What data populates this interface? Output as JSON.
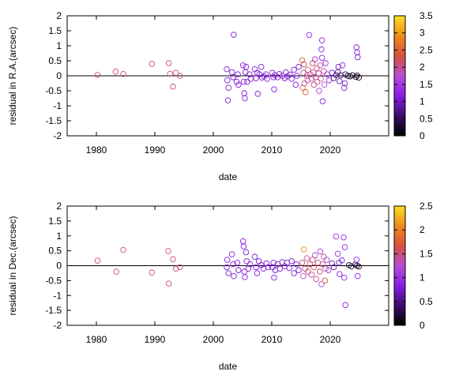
{
  "chart_data": [
    {
      "type": "scatter",
      "xlabel": "date",
      "ylabel": "residual in R.A.(arcsec)",
      "xlim": [
        1975,
        2030
      ],
      "ylim": [
        -2,
        2
      ],
      "xticks": [
        "1980",
        "1990",
        "2000",
        "2010",
        "2020"
      ],
      "yticks": [
        "2",
        "1.5",
        "1",
        "0.5",
        "0",
        "-0.5",
        "-1",
        "-1.5",
        "-2"
      ],
      "zero_line": true,
      "grid": false,
      "colorbar": {
        "range": [
          0,
          3.5
        ],
        "ticks": [
          "3.5",
          "3",
          "2.5",
          "2",
          "1.5",
          "1",
          "0.5",
          "0"
        ],
        "palette": [
          "#000000",
          "#3b0d6b",
          "#8a1ce8",
          "#b84dd6",
          "#d8503a",
          "#f08a1c",
          "#fce024"
        ]
      },
      "points": [
        [
          1980.2,
          0.03,
          2.1
        ],
        [
          1983.3,
          0.14,
          2.1
        ],
        [
          1984.6,
          0.06,
          2.1
        ],
        [
          1989.5,
          0.4,
          2.1
        ],
        [
          1992.4,
          0.42,
          2.1
        ],
        [
          1992.6,
          0.07,
          2.1
        ],
        [
          1993.1,
          -0.36,
          2.1
        ],
        [
          1993.6,
          0.1,
          2.1
        ],
        [
          1994.3,
          0.0,
          2.1
        ],
        [
          2002.3,
          0.22,
          1.1
        ],
        [
          2002.4,
          -0.15,
          1.1
        ],
        [
          2002.6,
          -0.4,
          1.1
        ],
        [
          2002.5,
          -0.82,
          1.1
        ],
        [
          2003.2,
          0.12,
          1.1
        ],
        [
          2003.4,
          -0.05,
          1.1
        ],
        [
          2003.5,
          1.37,
          1.1
        ],
        [
          2004.0,
          -0.2,
          1.1
        ],
        [
          2004.2,
          0.05,
          1.1
        ],
        [
          2004.3,
          -0.3,
          1.1
        ],
        [
          2005.1,
          0.35,
          1.1
        ],
        [
          2005.2,
          -0.2,
          1.1
        ],
        [
          2005.3,
          -0.58,
          1.1
        ],
        [
          2005.4,
          -0.75,
          1.1
        ],
        [
          2005.6,
          0.3,
          1.1
        ],
        [
          2005.5,
          0.12,
          1.1
        ],
        [
          2005.8,
          -0.2,
          1.1
        ],
        [
          2006.2,
          0.05,
          1.1
        ],
        [
          2006.4,
          -0.1,
          1.1
        ],
        [
          2007.1,
          0.22,
          1.1
        ],
        [
          2007.3,
          -0.08,
          1.1
        ],
        [
          2007.5,
          0.1,
          1.1
        ],
        [
          2007.6,
          -0.6,
          1.1
        ],
        [
          2007.9,
          0.05,
          1.1
        ],
        [
          2008.2,
          0.3,
          1.1
        ],
        [
          2008.3,
          -0.06,
          1.1
        ],
        [
          2008.7,
          -0.02,
          1.1
        ],
        [
          2009.0,
          0.05,
          1.1
        ],
        [
          2009.2,
          -0.1,
          1.1
        ],
        [
          2010.1,
          0.1,
          1.1
        ],
        [
          2010.3,
          -0.05,
          1.1
        ],
        [
          2010.4,
          -0.45,
          1.1
        ],
        [
          2010.5,
          0.02,
          1.1
        ],
        [
          2011.0,
          -0.05,
          1.1
        ],
        [
          2011.3,
          0.06,
          1.1
        ],
        [
          2011.8,
          0.0,
          1.1
        ],
        [
          2012.2,
          -0.08,
          1.1
        ],
        [
          2012.4,
          0.12,
          1.1
        ],
        [
          2012.7,
          -0.02,
          1.1
        ],
        [
          2013.1,
          0.04,
          1.1
        ],
        [
          2013.4,
          -0.1,
          1.1
        ],
        [
          2013.8,
          0.2,
          1.1
        ],
        [
          2014.1,
          -0.3,
          1.1
        ],
        [
          2014.3,
          0.0,
          1.1
        ],
        [
          2014.6,
          0.3,
          1.1
        ],
        [
          2015.2,
          0.52,
          2.5
        ],
        [
          2015.3,
          -0.4,
          2.5
        ],
        [
          2015.5,
          0.38,
          2.2
        ],
        [
          2015.6,
          -0.25,
          2.0
        ],
        [
          2015.4,
          0.1,
          2.0
        ],
        [
          2015.8,
          -0.55,
          2.4
        ],
        [
          2016.0,
          0.0,
          2.0
        ],
        [
          2016.2,
          0.2,
          2.1
        ],
        [
          2016.1,
          -0.15,
          1.9
        ],
        [
          2016.4,
          1.36,
          1.3
        ],
        [
          2016.6,
          0.05,
          2.0
        ],
        [
          2016.8,
          -0.1,
          2.0
        ],
        [
          2017.0,
          0.42,
          2.2
        ],
        [
          2017.2,
          -0.3,
          2.1
        ],
        [
          2017.1,
          0.12,
          2.0
        ],
        [
          2017.4,
          0.55,
          1.4
        ],
        [
          2017.5,
          -0.05,
          1.9
        ],
        [
          2017.7,
          0.25,
          2.1
        ],
        [
          2017.8,
          -0.2,
          2.0
        ],
        [
          2018.0,
          0.08,
          2.0
        ],
        [
          2018.1,
          -0.5,
          1.5
        ],
        [
          2018.3,
          0.35,
          1.9
        ],
        [
          2018.4,
          -0.1,
          2.0
        ],
        [
          2018.6,
          1.18,
          1.2
        ],
        [
          2018.5,
          0.88,
          1.2
        ],
        [
          2018.6,
          0.6,
          1.2
        ],
        [
          2018.7,
          -0.85,
          1.2
        ],
        [
          2018.9,
          0.15,
          2.0
        ],
        [
          2019.0,
          -0.3,
          1.7
        ],
        [
          2019.2,
          0.42,
          1.4
        ],
        [
          2019.5,
          0.05,
          1.3
        ],
        [
          2019.8,
          -0.15,
          1.2
        ],
        [
          2020.3,
          0.1,
          1.0
        ],
        [
          2020.6,
          -0.08,
          0.8
        ],
        [
          2021.0,
          0.02,
          0.7
        ],
        [
          2021.4,
          0.3,
          1.0
        ],
        [
          2021.6,
          -0.18,
          0.9
        ],
        [
          2021.3,
          0.12,
          0.8
        ],
        [
          2021.8,
          0.02,
          0.6
        ],
        [
          2022.1,
          0.35,
          1.2
        ],
        [
          2022.4,
          -0.4,
          1.1
        ],
        [
          2022.6,
          0.05,
          0.6
        ],
        [
          2022.5,
          -0.25,
          1.1
        ],
        [
          2023.0,
          0.0,
          0.2
        ],
        [
          2023.4,
          -0.02,
          0.2
        ],
        [
          2023.8,
          0.02,
          0.2
        ],
        [
          2024.4,
          -0.04,
          0.2
        ],
        [
          2024.6,
          0.01,
          0.2
        ],
        [
          2024.9,
          -0.06,
          0.2
        ],
        [
          2024.5,
          0.95,
          1.1
        ],
        [
          2024.6,
          0.78,
          1.1
        ],
        [
          2024.7,
          0.62,
          1.1
        ]
      ]
    },
    {
      "type": "scatter",
      "xlabel": "date",
      "ylabel": "residual in Dec.(arcsec)",
      "xlim": [
        1975,
        2030
      ],
      "ylim": [
        -2,
        2
      ],
      "xticks": [
        "1980",
        "1990",
        "2000",
        "2010",
        "2020"
      ],
      "yticks": [
        "2",
        "1.5",
        "1",
        "0.5",
        "0",
        "-0.5",
        "-1",
        "-1.5",
        "-2"
      ],
      "zero_line": true,
      "grid": false,
      "colorbar": {
        "range": [
          0,
          2.5
        ],
        "ticks": [
          "2.5",
          "2",
          "1.5",
          "1",
          "0.5",
          "0"
        ],
        "palette": [
          "#000000",
          "#3b0d6b",
          "#8a1ce8",
          "#b84dd6",
          "#d8503a",
          "#f08a1c",
          "#fce024"
        ]
      },
      "points": [
        [
          1980.2,
          0.17,
          1.5
        ],
        [
          1983.4,
          -0.2,
          1.5
        ],
        [
          1984.6,
          0.53,
          1.5
        ],
        [
          1989.5,
          -0.23,
          1.5
        ],
        [
          1992.3,
          0.49,
          1.5
        ],
        [
          1992.4,
          -0.6,
          1.5
        ],
        [
          1993.1,
          0.22,
          1.5
        ],
        [
          1993.6,
          -0.1,
          1.5
        ],
        [
          1994.3,
          -0.05,
          1.5
        ],
        [
          2002.3,
          -0.05,
          0.8
        ],
        [
          2002.4,
          0.2,
          0.8
        ],
        [
          2002.6,
          -0.25,
          0.8
        ],
        [
          2003.2,
          0.38,
          0.8
        ],
        [
          2003.4,
          0.05,
          0.8
        ],
        [
          2003.5,
          -0.35,
          0.8
        ],
        [
          2004.1,
          0.1,
          0.8
        ],
        [
          2004.3,
          -0.15,
          0.8
        ],
        [
          2005.1,
          0.82,
          0.8
        ],
        [
          2005.2,
          0.65,
          0.8
        ],
        [
          2005.3,
          -0.2,
          0.8
        ],
        [
          2005.4,
          -0.38,
          0.8
        ],
        [
          2005.6,
          0.45,
          0.8
        ],
        [
          2005.7,
          0.15,
          0.8
        ],
        [
          2006.0,
          -0.1,
          0.8
        ],
        [
          2006.3,
          0.05,
          0.8
        ],
        [
          2007.1,
          0.3,
          0.8
        ],
        [
          2007.3,
          -0.05,
          0.8
        ],
        [
          2007.5,
          -0.25,
          0.8
        ],
        [
          2007.8,
          0.15,
          0.8
        ],
        [
          2008.2,
          0.02,
          0.8
        ],
        [
          2008.6,
          -0.1,
          0.8
        ],
        [
          2009.1,
          0.08,
          0.8
        ],
        [
          2009.4,
          -0.05,
          0.8
        ],
        [
          2010.1,
          -0.05,
          0.8
        ],
        [
          2010.3,
          0.1,
          0.8
        ],
        [
          2010.4,
          -0.4,
          0.8
        ],
        [
          2010.6,
          -0.15,
          0.8
        ],
        [
          2011.0,
          0.05,
          0.8
        ],
        [
          2011.4,
          -0.1,
          0.8
        ],
        [
          2011.8,
          0.12,
          0.8
        ],
        [
          2012.2,
          -0.02,
          0.8
        ],
        [
          2012.6,
          0.1,
          0.8
        ],
        [
          2013.0,
          -0.08,
          0.8
        ],
        [
          2013.4,
          0.15,
          0.8
        ],
        [
          2013.8,
          -0.25,
          0.8
        ],
        [
          2014.2,
          0.05,
          0.8
        ],
        [
          2014.6,
          -0.15,
          0.8
        ],
        [
          2015.2,
          0.1,
          1.5
        ],
        [
          2015.4,
          -0.35,
          1.3
        ],
        [
          2015.5,
          0.55,
          2.1
        ],
        [
          2015.7,
          -0.1,
          1.5
        ],
        [
          2016.0,
          0.25,
          1.4
        ],
        [
          2016.2,
          -0.2,
          1.5
        ],
        [
          2016.5,
          0.05,
          1.5
        ],
        [
          2016.8,
          -0.3,
          1.3
        ],
        [
          2017.0,
          0.2,
          1.5
        ],
        [
          2017.2,
          -0.05,
          1.6
        ],
        [
          2017.4,
          0.35,
          1.2
        ],
        [
          2017.6,
          -0.45,
          1.4
        ],
        [
          2017.9,
          0.1,
          1.5
        ],
        [
          2018.2,
          -0.2,
          1.5
        ],
        [
          2018.3,
          0.48,
          1.1
        ],
        [
          2018.5,
          -0.62,
          1.2
        ],
        [
          2018.7,
          0.05,
          1.5
        ],
        [
          2018.9,
          0.3,
          1.4
        ],
        [
          2019.1,
          -0.5,
          1.7
        ],
        [
          2019.2,
          -0.1,
          1.4
        ],
        [
          2019.4,
          0.2,
          1.2
        ],
        [
          2019.7,
          -0.15,
          1.1
        ],
        [
          2020.3,
          0.08,
          0.7
        ],
        [
          2020.6,
          -0.05,
          0.6
        ],
        [
          2021.0,
          0.98,
          1.0
        ],
        [
          2021.3,
          0.4,
          1.0
        ],
        [
          2021.5,
          0.1,
          0.7
        ],
        [
          2021.6,
          -0.28,
          0.9
        ],
        [
          2022.0,
          0.18,
          0.8
        ],
        [
          2022.3,
          0.95,
          0.9
        ],
        [
          2022.5,
          0.62,
          0.9
        ],
        [
          2022.4,
          -0.4,
          0.9
        ],
        [
          2022.6,
          -1.32,
          0.9
        ],
        [
          2023.2,
          0.02,
          0.2
        ],
        [
          2023.6,
          -0.02,
          0.2
        ],
        [
          2024.3,
          0.04,
          0.2
        ],
        [
          2024.6,
          0.0,
          0.2
        ],
        [
          2024.9,
          -0.03,
          0.2
        ],
        [
          2024.7,
          -0.35,
          0.9
        ],
        [
          2024.5,
          0.2,
          0.9
        ]
      ]
    }
  ]
}
